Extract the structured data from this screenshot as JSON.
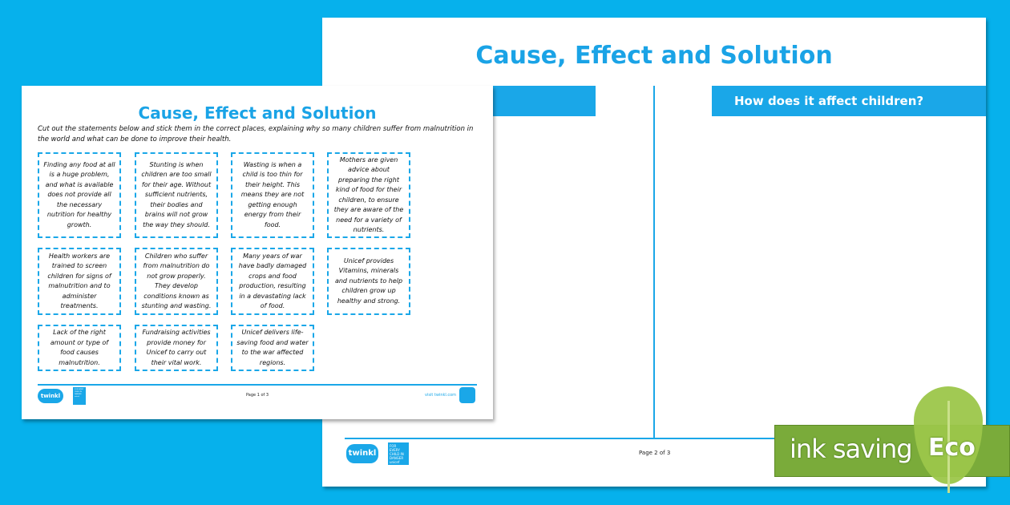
{
  "page2": {
    "title": "Cause, Effect and Solution",
    "col_left_header": "",
    "col_right_header": "How does it affect children?",
    "page_number": "Page 2 of 3"
  },
  "page1": {
    "title": "Cause, Effect and Solution",
    "instructions": "Cut out the statements below and stick them in the correct places, explaining why so many children suffer from malnutrition in the world and what can be done to improve their health.",
    "cards": [
      "Finding any food at all is a huge problem, and what is available does not provide all the necessary nutrition for healthy growth.",
      "Stunting is when children are too small for their age. Without sufficient nutrients, their bodies and brains will not grow the way they should.",
      "Wasting is when a child is too thin for their height. This means they are not getting enough energy from their food.",
      "Mothers are given advice about preparing the right kind of food for their children, to ensure they are aware of the need for a variety of nutrients.",
      "Health workers are trained to screen children for signs of malnutrition and to administer treatments.",
      "Children who suffer from malnutrition do not grow properly. They develop conditions known as stunting and wasting.",
      "Many years of war have badly damaged crops and food production, resulting in a devastating lack of food.",
      "Unicef provides Vitamins, minerals and nutrients to help children grow up healthy and strong.",
      "Lack of the right amount or type of food causes malnutrition.",
      "Fundraising activities provide money for Unicef to carry out their vital work.",
      "Unicef delivers life-saving food and water to the war affected regions."
    ],
    "page_number": "Page 1 of 3",
    "website": "visit twinkl.com"
  },
  "brand": {
    "twinkl": "twinkl",
    "unicef": "FOR EVERY CHILD IN DANGER unicef"
  },
  "eco": {
    "label": "ink saving",
    "badge": "Eco"
  },
  "colors": {
    "background": "#06b1ec",
    "accent": "#1aa7e8",
    "eco_green": "#7aab3a"
  }
}
